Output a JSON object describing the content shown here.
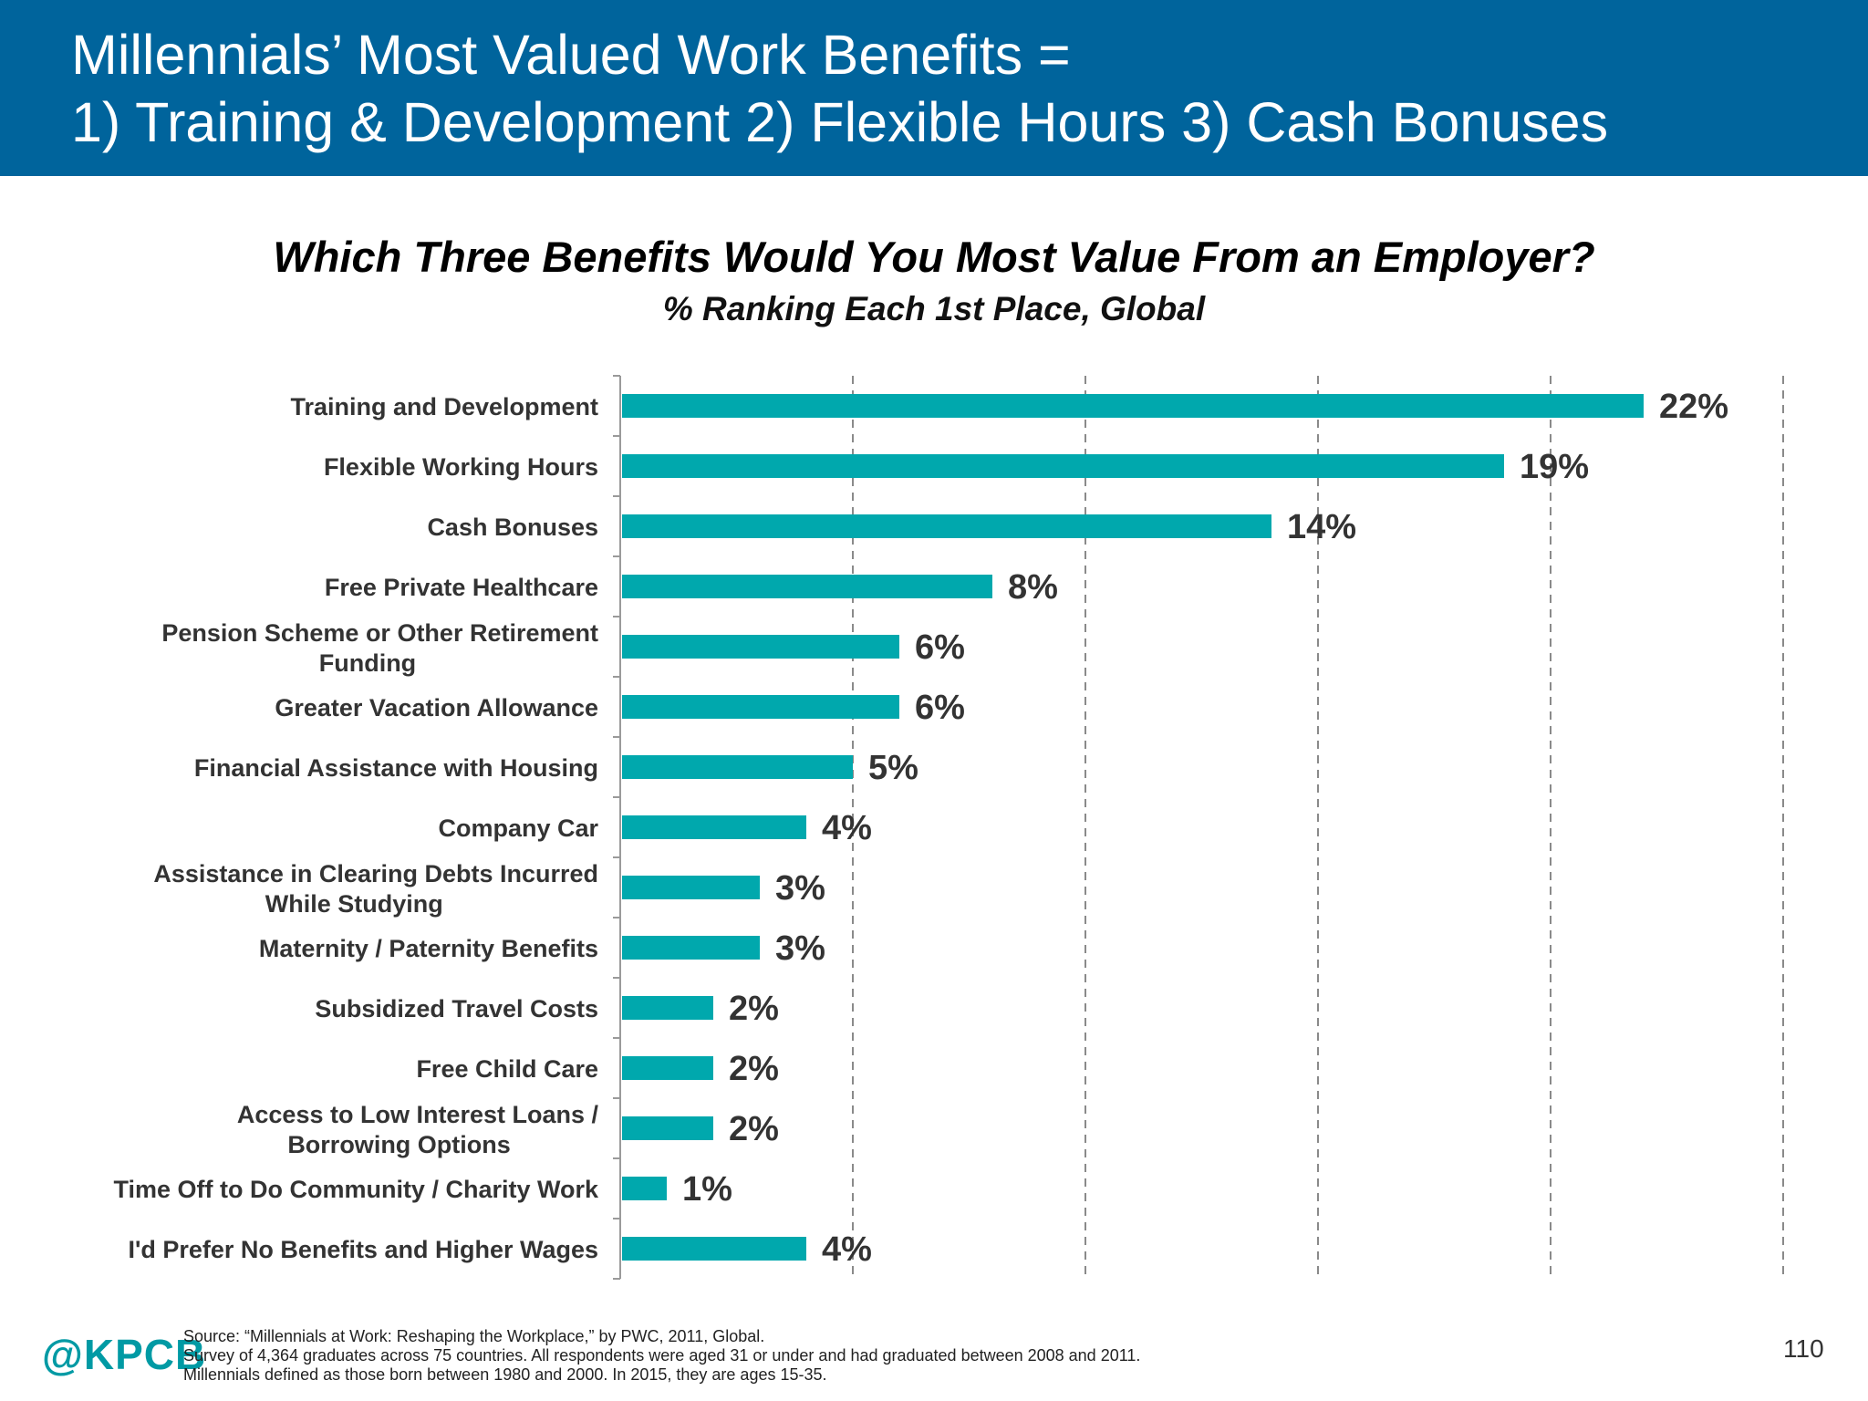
{
  "header": {
    "line1": "Millennials’ Most Valued Work Benefits =",
    "line2": "1) Training & Development  2) Flexible Hours  3) Cash Bonuses"
  },
  "chart_data": {
    "type": "bar",
    "orientation": "horizontal",
    "title": "Which Three Benefits Would You Most Value From an Employer?",
    "subtitle": "% Ranking Each 1st Place, Global",
    "categories": [
      [
        "Training and Development"
      ],
      [
        "Flexible Working Hours"
      ],
      [
        "Cash Bonuses"
      ],
      [
        "Free Private Healthcare"
      ],
      [
        "Pension Scheme or Other Retirement",
        "Funding"
      ],
      [
        "Greater Vacation Allowance"
      ],
      [
        "Financial Assistance with Housing"
      ],
      [
        "Company Car"
      ],
      [
        "Assistance in Clearing Debts Incurred",
        "While Studying"
      ],
      [
        "Maternity / Paternity Benefits"
      ],
      [
        "Subsidized Travel Costs"
      ],
      [
        "Free Child Care"
      ],
      [
        "Access to Low Interest Loans /",
        "Borrowing Options"
      ],
      [
        "Time Off to Do Community / Charity Work"
      ],
      [
        "I'd Prefer No Benefits and Higher Wages"
      ]
    ],
    "values": [
      22,
      19,
      14,
      8,
      6,
      6,
      5,
      4,
      3,
      3,
      2,
      2,
      2,
      1,
      4
    ],
    "value_labels": [
      "22%",
      "19%",
      "14%",
      "8%",
      "6%",
      "6%",
      "5%",
      "4%",
      "3%",
      "3%",
      "2%",
      "2%",
      "2%",
      "1%",
      "4%"
    ],
    "xlim": [
      0,
      25
    ],
    "gridlines": "vertical dashed",
    "bar_color": "#00a8ad"
  },
  "footer": {
    "logo": "@KPCB",
    "source_line1": "Source: “Millennials at Work: Reshaping the Workplace,” by PWC, 2011, Global.",
    "source_line2": "Survey of 4,364 graduates across 75 countries. All respondents were aged 31 or under and had graduated between 2008 and 2011.",
    "source_line3": "Millennials defined as those born between 1980 and 2000. In 2015, they are ages 15-35.",
    "page_number": "110"
  }
}
